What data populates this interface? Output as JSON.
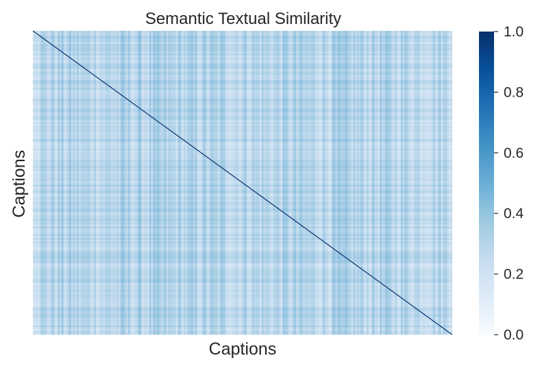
{
  "chart_data": {
    "type": "heatmap",
    "title": "Semantic Textual Similarity",
    "xlabel": "Captions",
    "ylabel": "Captions",
    "colormap": "Blues",
    "colorbar": {
      "vmin": 0.0,
      "vmax": 1.0,
      "ticks": [
        "0.0",
        "0.2",
        "0.4",
        "0.6",
        "0.8",
        "1.0"
      ]
    },
    "diagonal_value": 1.0,
    "offdiagonal_typical_range": [
      0.1,
      0.5
    ],
    "grid": false,
    "x_ticks_shown": false,
    "y_ticks_shown": false,
    "colors": {
      "low": "#f7fbff",
      "mid": "#6baed6",
      "high": "#08306b"
    }
  }
}
